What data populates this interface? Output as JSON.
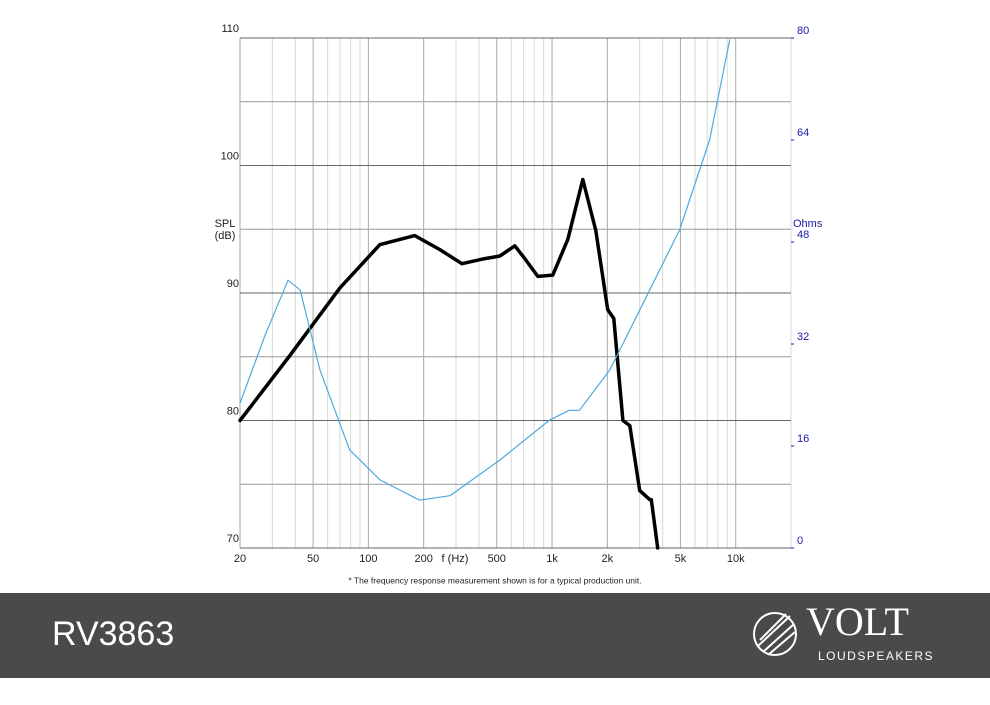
{
  "chart_data": {
    "type": "line",
    "xscale": "log",
    "xlim": [
      20,
      20000
    ],
    "ylim": [
      70,
      110
    ],
    "y2lim": [
      0,
      80
    ],
    "xticks": [
      20,
      50,
      100,
      200,
      500,
      {
        "value": 1000,
        "label": "1k"
      },
      {
        "value": 2000,
        "label": "2k"
      },
      {
        "value": 5000,
        "label": "5k"
      },
      {
        "value": 10000,
        "label": "10k"
      }
    ],
    "xminor_ticks": [
      30,
      40,
      60,
      70,
      80,
      90,
      300,
      400,
      600,
      700,
      800,
      900,
      3000,
      4000,
      6000,
      7000,
      8000,
      9000,
      20000
    ],
    "yticks": [
      70,
      80,
      90,
      100,
      110
    ],
    "yminor_ticks": [
      75,
      85,
      95,
      105
    ],
    "y2ticks": [
      0,
      16,
      32,
      48,
      64,
      80
    ],
    "ylabel": [
      "SPL",
      "(dB)"
    ],
    "y2label": "Ohms",
    "xlabel": "f (Hz)",
    "grid": true,
    "series": [
      {
        "color": "#000000",
        "axis": "y",
        "x": [
          20,
          37.4,
          70,
          115.6,
          179,
          245,
          323,
          431,
          520,
          627,
          711,
          836,
          1010,
          1218,
          1470,
          1730,
          2010,
          2170,
          2430,
          2650,
          3000,
          3400,
          3470,
          3760
        ],
        "y": [
          80.0,
          85.1,
          90.4,
          93.8,
          94.5,
          93.4,
          92.3,
          92.7,
          92.9,
          93.7,
          92.7,
          91.3,
          91.4,
          94.2,
          98.9,
          94.9,
          88.7,
          88.0,
          80.0,
          79.6,
          74.5,
          73.8,
          73.8,
          70.0
        ]
      },
      {
        "color": "#4fa8e0",
        "axis": "y2",
        "x": [
          20,
          27.4,
          36.5,
          42.5,
          54.5,
          79,
          115.6,
          190,
          278,
          520,
          972,
          1240,
          1410,
          2060,
          3000,
          4950,
          7210,
          9270
        ],
        "y": [
          22.7,
          33.4,
          42.0,
          40.5,
          27.9,
          15.4,
          10.7,
          7.5,
          8.2,
          13.8,
          20.1,
          21.6,
          21.6,
          27.9,
          37.3,
          49.9,
          64.0,
          79.7
        ]
      }
    ],
    "footnote": "* The frequency response measurement shown is for a typical production unit."
  },
  "footer": {
    "model": "RV3863",
    "brand": "VOLT",
    "tagline": "LOUDSPEAKERS"
  }
}
